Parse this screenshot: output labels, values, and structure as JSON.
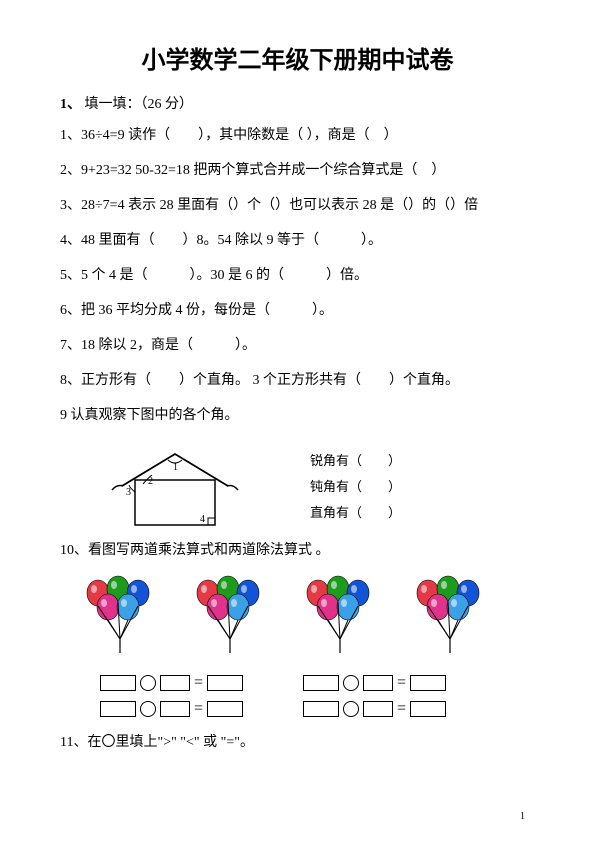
{
  "title": "小学数学二年级下册期中试卷",
  "section1": {
    "num": "1、",
    "label": "填一填：（26 分）"
  },
  "q1": "1、36÷4=9 读作（　　），其中除数是（ ），商是（　）",
  "q2": "2、9+23=32 50-32=18 把两个算式合并成一个综合算式是（　）",
  "q3": "3、28÷7=4 表示 28 里面有（）个（）也可以表示 28 是（）的（）倍",
  "q4": "4、48 里面有（　　）8。54 除以 9 等于（　　　）。",
  "q5": "5、5 个 4 是（　　　）。30 是 6 的（　　　）倍。",
  "q6": "6、把 36 平均分成 4 份，每份是（　　　）。",
  "q7": "7、18 除以 2，商是（　　　）。",
  "q8": "8、正方形有（　　）个直角。 3 个正方形共有（　　）个直角。",
  "q9_head": "9 认真观察下图中的各个角。",
  "q9_labels": {
    "acute": "锐角有（　　）",
    "obtuse": "钝角有（　　）",
    "right": "直角有（　　）"
  },
  "q10": "10、看图写两道乘法算式和两道除法算式 。",
  "q11": "11、在〇里填上\">\" \"<\" 或 \"=\"。",
  "house": {
    "stroke": "#000000",
    "fill": "#ffffff",
    "labels": [
      "1",
      "2",
      "3",
      "4"
    ]
  },
  "balloons": {
    "groups": 4,
    "colors": [
      "#e63946",
      "#1d9b1d",
      "#1254d8",
      "#e0318b",
      "#3aa0e8"
    ],
    "stem_color": "#000000"
  },
  "page_number": "1"
}
